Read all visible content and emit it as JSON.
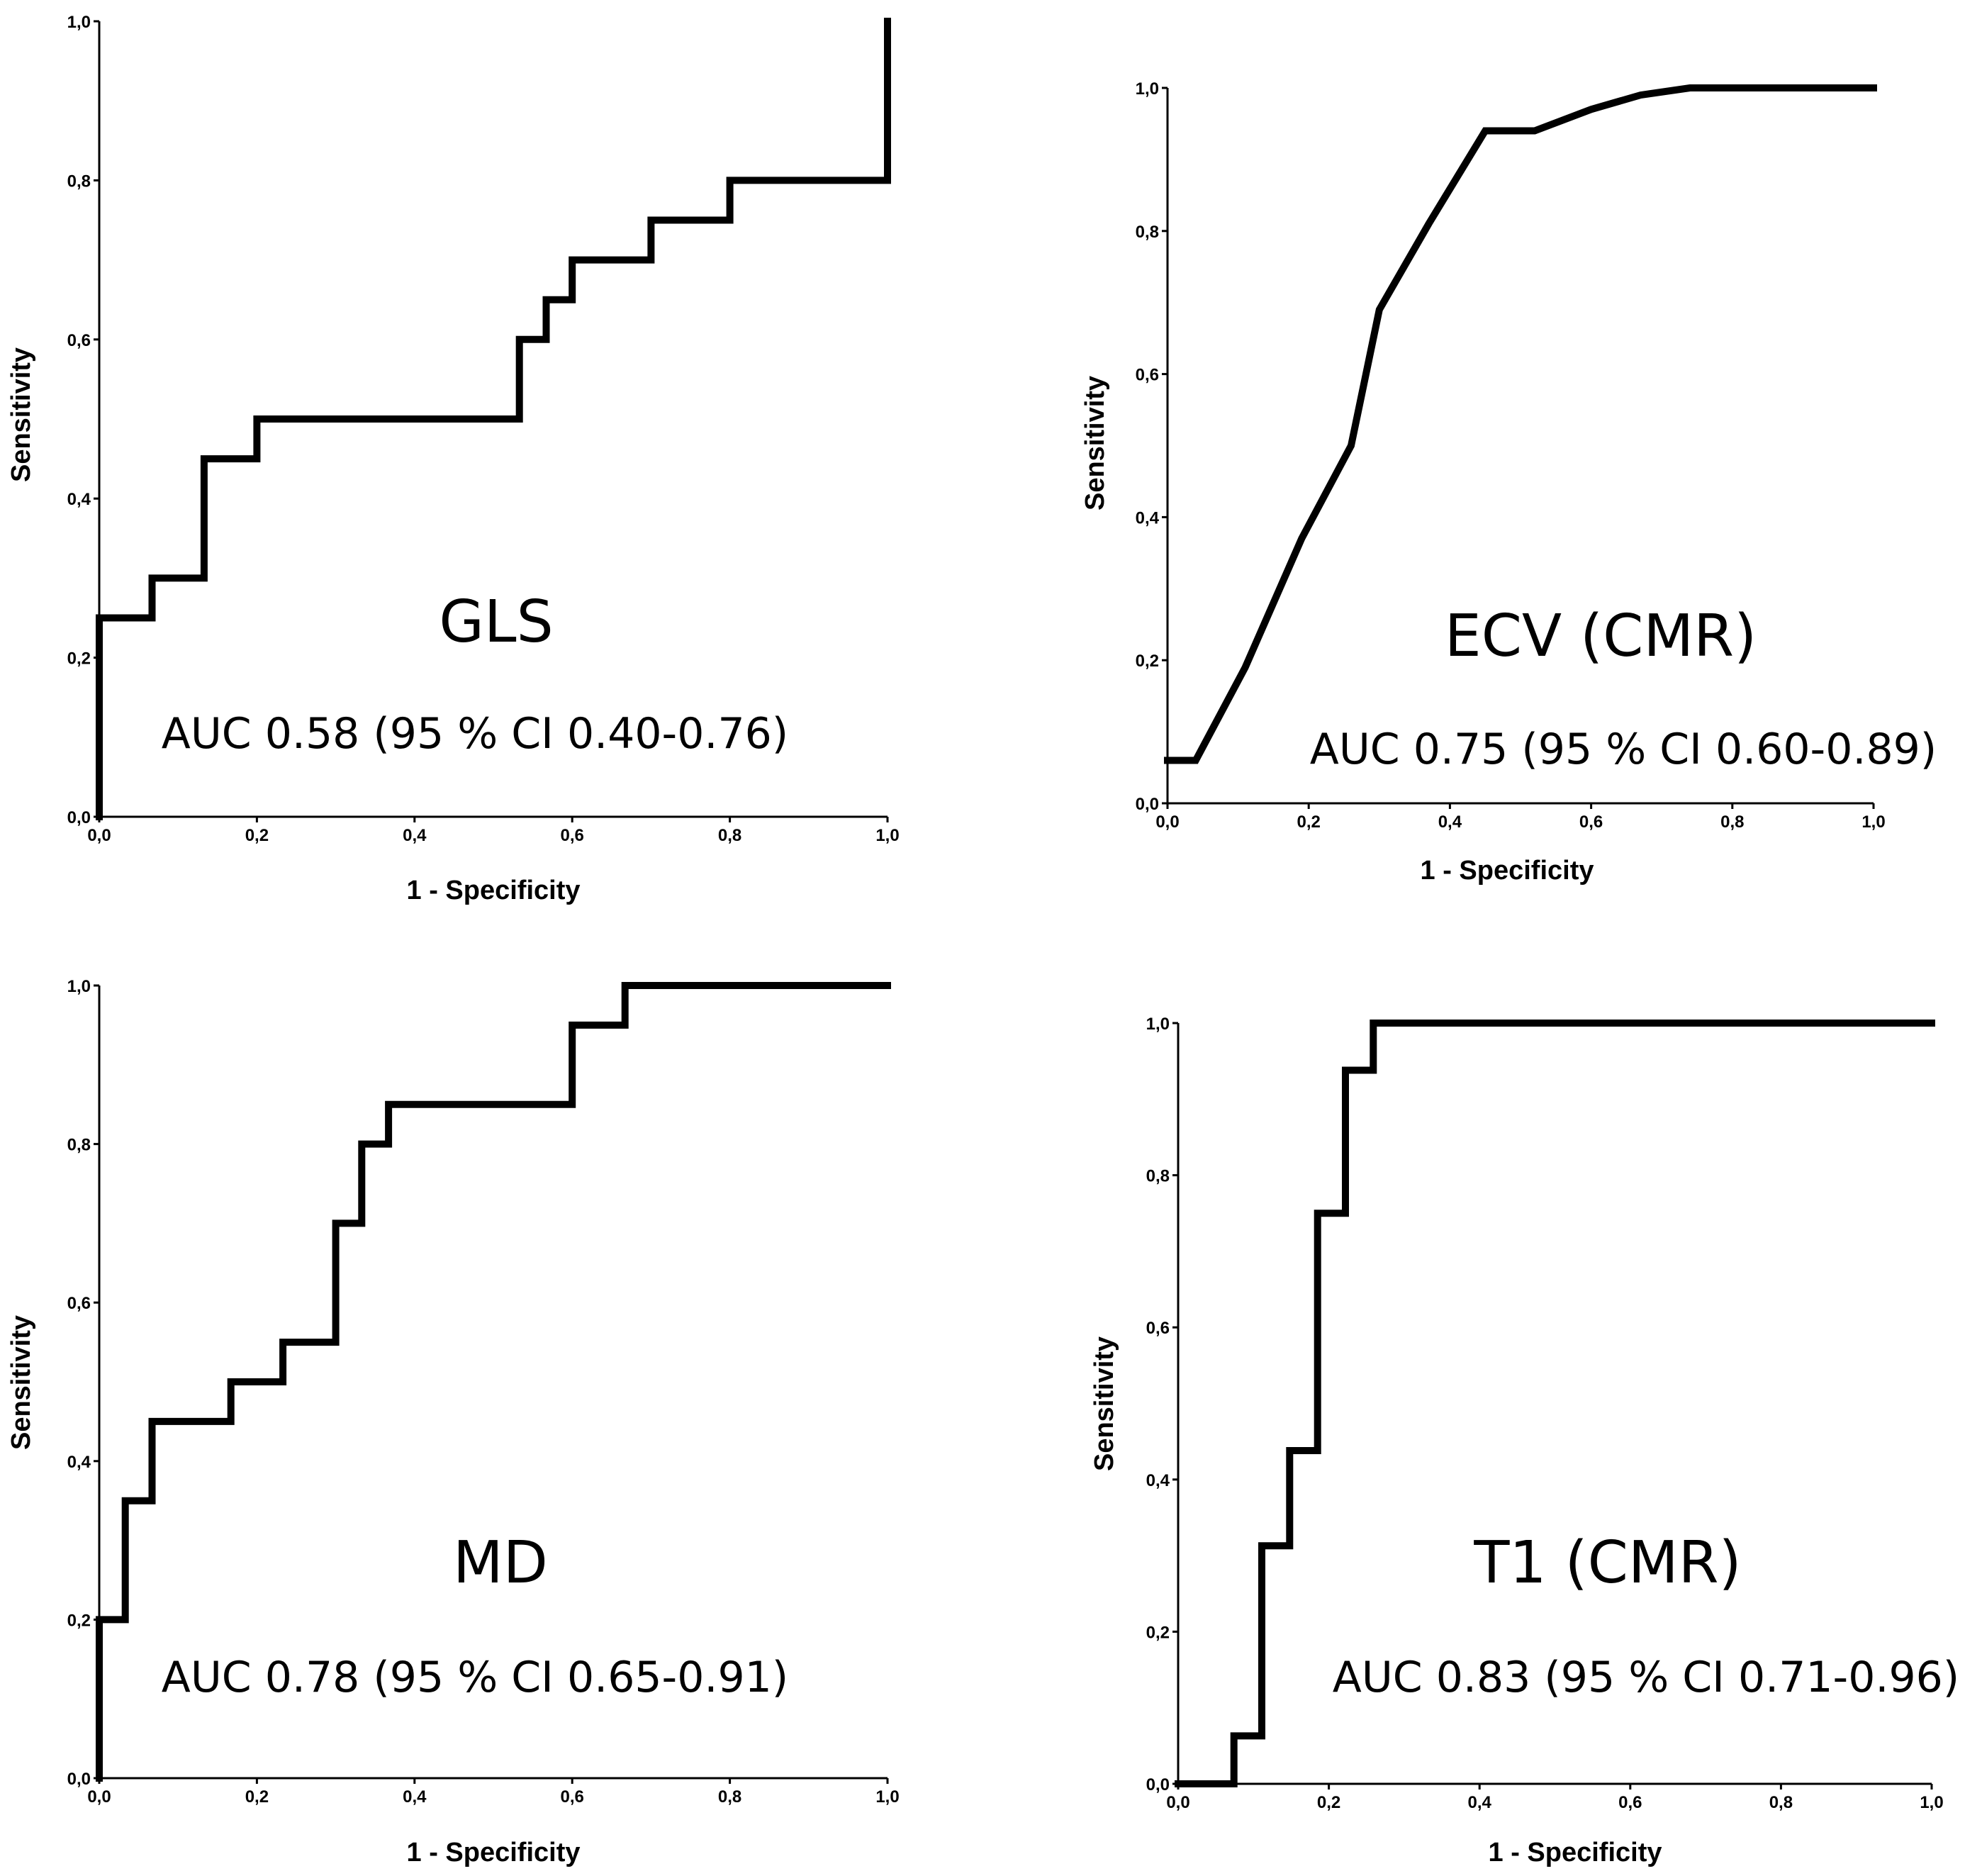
{
  "chart_data": [
    {
      "type": "line",
      "title": "GLS",
      "annotation": "AUC 0.58 (95 % CI 0.40-0.76)",
      "xlabel": "1 - Specificity",
      "ylabel": "Sensitivity",
      "xlim": [
        0,
        1
      ],
      "ylim": [
        0,
        1
      ],
      "xticks": [
        "0,0",
        "0,2",
        "0,4",
        "0,6",
        "0,8",
        "1,0"
      ],
      "yticks": [
        "0,0",
        "0,2",
        "0,4",
        "0,6",
        "0,8",
        "1,0"
      ],
      "x": [
        0,
        0,
        0.067,
        0.067,
        0.133,
        0.133,
        0.2,
        0.2,
        0.533,
        0.533,
        0.567,
        0.567,
        0.6,
        0.6,
        0.7,
        0.7,
        0.8,
        0.8,
        1.0,
        1.0
      ],
      "y": [
        0,
        0.25,
        0.25,
        0.3,
        0.3,
        0.45,
        0.45,
        0.5,
        0.5,
        0.6,
        0.6,
        0.65,
        0.65,
        0.7,
        0.7,
        0.75,
        0.75,
        0.8,
        0.8,
        1.0
      ]
    },
    {
      "type": "line",
      "title": "ECV (CMR)",
      "annotation": "AUC 0.75 (95 % CI 0.60-0.89)",
      "xlabel": "1 - Specificity",
      "ylabel": "Sensitivity",
      "xlim": [
        0,
        1
      ],
      "ylim": [
        0,
        1
      ],
      "xticks": [
        "0,0",
        "0,2",
        "0,4",
        "0,6",
        "0,8",
        "1,0"
      ],
      "yticks": [
        "0,0",
        "0,2",
        "0,4",
        "0,6",
        "0,8",
        "1,0"
      ],
      "x": [
        0,
        0.04,
        0.11,
        0.19,
        0.26,
        0.3,
        0.37,
        0.45,
        0.52,
        0.6,
        0.67,
        0.74,
        1.0
      ],
      "y": [
        0.06,
        0.06,
        0.19,
        0.37,
        0.5,
        0.69,
        0.81,
        0.94,
        0.94,
        0.97,
        0.99,
        1.0,
        1.0
      ]
    },
    {
      "type": "line",
      "title": "MD",
      "annotation": "AUC 0.78 (95 % CI 0.65-0.91)",
      "xlabel": "1 - Specificity",
      "ylabel": "Sensitivity",
      "xlim": [
        0,
        1
      ],
      "ylim": [
        0,
        1
      ],
      "xticks": [
        "0,0",
        "0,2",
        "0,4",
        "0,6",
        "0,8",
        "1,0"
      ],
      "yticks": [
        "0,0",
        "0,2",
        "0,4",
        "0,6",
        "0,8",
        "1,0"
      ],
      "x": [
        0,
        0,
        0.033,
        0.033,
        0.067,
        0.067,
        0.167,
        0.167,
        0.233,
        0.233,
        0.3,
        0.3,
        0.333,
        0.333,
        0.367,
        0.367,
        0.6,
        0.6,
        0.667,
        0.667,
        1.0
      ],
      "y": [
        0,
        0.2,
        0.2,
        0.35,
        0.35,
        0.45,
        0.45,
        0.5,
        0.5,
        0.55,
        0.55,
        0.7,
        0.7,
        0.8,
        0.8,
        0.85,
        0.85,
        0.95,
        0.95,
        1.0,
        1.0
      ]
    },
    {
      "type": "line",
      "title": "T1 (CMR)",
      "annotation": "AUC 0.83 (95 % CI 0.71-0.96)",
      "xlabel": "1 - Specificity",
      "ylabel": "Sensitivity",
      "xlim": [
        0,
        1
      ],
      "ylim": [
        0,
        1
      ],
      "xticks": [
        "0,0",
        "0,2",
        "0,4",
        "0,6",
        "0,8",
        "1,0"
      ],
      "yticks": [
        "0,0",
        "0,2",
        "0,4",
        "0,6",
        "0,8",
        "1,0"
      ],
      "x": [
        0,
        0.074,
        0.074,
        0.111,
        0.111,
        0.148,
        0.148,
        0.185,
        0.185,
        0.222,
        0.222,
        0.259,
        0.259,
        1.0
      ],
      "y": [
        0,
        0,
        0.063,
        0.063,
        0.313,
        0.313,
        0.438,
        0.438,
        0.75,
        0.75,
        0.938,
        0.938,
        1.0,
        1.0
      ]
    }
  ]
}
